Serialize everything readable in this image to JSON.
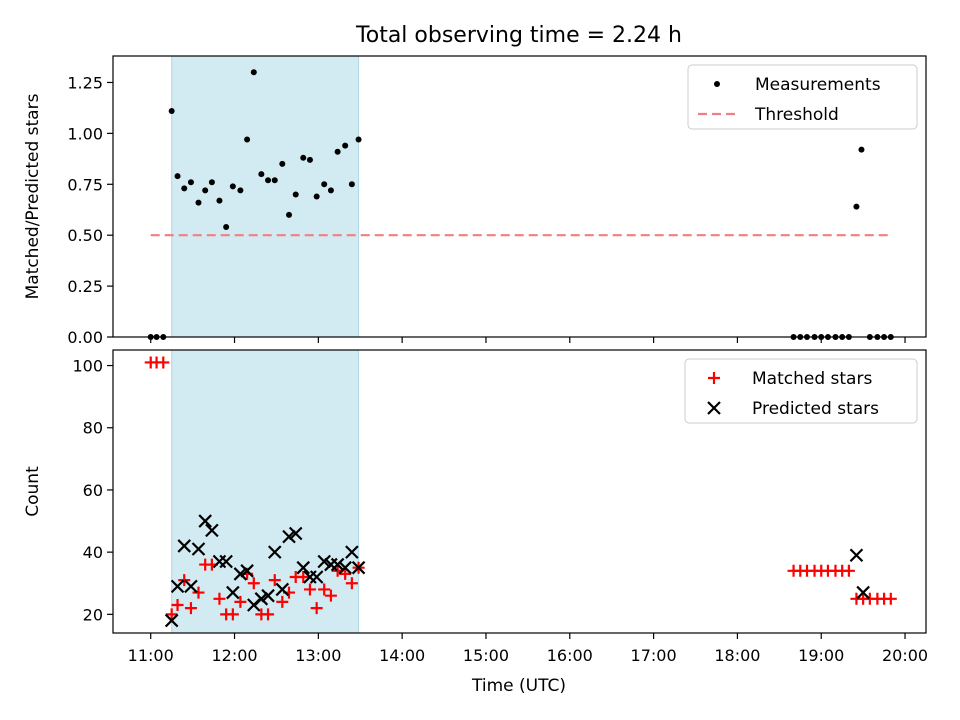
{
  "figure": {
    "title": "Total observing time = 2.24 h",
    "xlabel": "Time (UTC)",
    "x_ticks": [
      "11:00",
      "12:00",
      "13:00",
      "14:00",
      "15:00",
      "16:00",
      "17:00",
      "18:00",
      "19:00",
      "20:00"
    ]
  },
  "colors": {
    "measurements": "#000000",
    "threshold": "#f08080",
    "matched": "#ff0000",
    "predicted": "#000000",
    "observing_window": "#add8e6"
  },
  "chart_data": [
    {
      "type": "scatter",
      "ylabel": "Matched/Predicted stars",
      "x_unit": "hours UTC",
      "xlim": [
        10.55,
        20.25
      ],
      "ylim": [
        0,
        1.38
      ],
      "y_ticks": [
        "0.00",
        "0.25",
        "0.50",
        "0.75",
        "1.00",
        "1.25"
      ],
      "y_tick_values": [
        0,
        0.25,
        0.5,
        0.75,
        1.0,
        1.25
      ],
      "observing_window": [
        11.25,
        13.48
      ],
      "legend": {
        "placement": "top-right",
        "entries": [
          "Measurements",
          "Threshold"
        ]
      },
      "series": [
        {
          "name": "Measurements",
          "points": [
            [
              11.0,
              0
            ],
            [
              11.07,
              0
            ],
            [
              11.15,
              0
            ],
            [
              11.25,
              1.11
            ],
            [
              11.32,
              0.79
            ],
            [
              11.4,
              0.73
            ],
            [
              11.48,
              0.76
            ],
            [
              11.57,
              0.66
            ],
            [
              11.65,
              0.72
            ],
            [
              11.73,
              0.76
            ],
            [
              11.82,
              0.67
            ],
            [
              11.9,
              0.54
            ],
            [
              11.98,
              0.74
            ],
            [
              12.07,
              0.72
            ],
            [
              12.15,
              0.97
            ],
            [
              12.23,
              1.3
            ],
            [
              12.32,
              0.8
            ],
            [
              12.4,
              0.77
            ],
            [
              12.48,
              0.77
            ],
            [
              12.57,
              0.85
            ],
            [
              12.65,
              0.6
            ],
            [
              12.73,
              0.7
            ],
            [
              12.82,
              0.88
            ],
            [
              12.9,
              0.87
            ],
            [
              12.98,
              0.69
            ],
            [
              13.07,
              0.75
            ],
            [
              13.15,
              0.72
            ],
            [
              13.23,
              0.91
            ],
            [
              13.32,
              0.94
            ],
            [
              13.4,
              0.75
            ],
            [
              13.48,
              0.97
            ],
            [
              18.67,
              0
            ],
            [
              18.75,
              0
            ],
            [
              18.83,
              0
            ],
            [
              18.92,
              0
            ],
            [
              19.0,
              0
            ],
            [
              19.08,
              0
            ],
            [
              19.17,
              0
            ],
            [
              19.25,
              0
            ],
            [
              19.33,
              0
            ],
            [
              19.42,
              0.64
            ],
            [
              19.48,
              0.92
            ],
            [
              19.58,
              0
            ],
            [
              19.67,
              0
            ],
            [
              19.75,
              0
            ],
            [
              19.83,
              0
            ]
          ]
        },
        {
          "name": "Threshold",
          "y": 0.5,
          "x_range": [
            11.0,
            19.83
          ]
        }
      ]
    },
    {
      "type": "scatter",
      "ylabel": "Count",
      "x_unit": "hours UTC",
      "xlim": [
        10.55,
        20.25
      ],
      "ylim": [
        14,
        105
      ],
      "y_ticks": [
        "20",
        "40",
        "60",
        "80",
        "100"
      ],
      "y_tick_values": [
        20,
        40,
        60,
        80,
        100
      ],
      "observing_window": [
        11.25,
        13.48
      ],
      "legend": {
        "placement": "top-right",
        "entries": [
          "Matched stars",
          "Predicted stars"
        ]
      },
      "series": [
        {
          "name": "Matched stars",
          "points": [
            [
              11.0,
              101
            ],
            [
              11.07,
              101
            ],
            [
              11.15,
              101
            ],
            [
              11.25,
              20
            ],
            [
              11.32,
              23
            ],
            [
              11.4,
              31
            ],
            [
              11.48,
              22
            ],
            [
              11.57,
              27
            ],
            [
              11.65,
              36
            ],
            [
              11.73,
              36
            ],
            [
              11.82,
              25
            ],
            [
              11.9,
              20
            ],
            [
              11.98,
              20
            ],
            [
              12.07,
              24
            ],
            [
              12.15,
              33
            ],
            [
              12.23,
              30
            ],
            [
              12.32,
              20
            ],
            [
              12.4,
              20
            ],
            [
              12.48,
              31
            ],
            [
              12.57,
              24
            ],
            [
              12.65,
              27
            ],
            [
              12.73,
              32
            ],
            [
              12.82,
              32
            ],
            [
              12.9,
              28
            ],
            [
              12.98,
              22
            ],
            [
              13.07,
              28
            ],
            [
              13.15,
              26
            ],
            [
              13.23,
              34
            ],
            [
              13.32,
              33
            ],
            [
              13.4,
              30
            ],
            [
              13.48,
              35
            ],
            [
              18.67,
              34
            ],
            [
              18.75,
              34
            ],
            [
              18.83,
              34
            ],
            [
              18.92,
              34
            ],
            [
              19.0,
              34
            ],
            [
              19.08,
              34
            ],
            [
              19.17,
              34
            ],
            [
              19.25,
              34
            ],
            [
              19.33,
              34
            ],
            [
              19.42,
              25
            ],
            [
              19.5,
              25
            ],
            [
              19.58,
              25
            ],
            [
              19.67,
              25
            ],
            [
              19.75,
              25
            ],
            [
              19.83,
              25
            ]
          ]
        },
        {
          "name": "Predicted stars",
          "points": [
            [
              11.25,
              18
            ],
            [
              11.32,
              29
            ],
            [
              11.4,
              42
            ],
            [
              11.48,
              29
            ],
            [
              11.57,
              41
            ],
            [
              11.65,
              50
            ],
            [
              11.73,
              47
            ],
            [
              11.82,
              37
            ],
            [
              11.9,
              37
            ],
            [
              11.98,
              27
            ],
            [
              12.07,
              33
            ],
            [
              12.15,
              34
            ],
            [
              12.23,
              23
            ],
            [
              12.32,
              25
            ],
            [
              12.4,
              26
            ],
            [
              12.48,
              40
            ],
            [
              12.57,
              28
            ],
            [
              12.65,
              45
            ],
            [
              12.73,
              46
            ],
            [
              12.82,
              35
            ],
            [
              12.9,
              32
            ],
            [
              12.98,
              32
            ],
            [
              13.07,
              37
            ],
            [
              13.15,
              36
            ],
            [
              13.23,
              36
            ],
            [
              13.32,
              35
            ],
            [
              13.4,
              40
            ],
            [
              13.48,
              35
            ],
            [
              19.42,
              39
            ],
            [
              19.5,
              27
            ]
          ]
        }
      ]
    }
  ]
}
